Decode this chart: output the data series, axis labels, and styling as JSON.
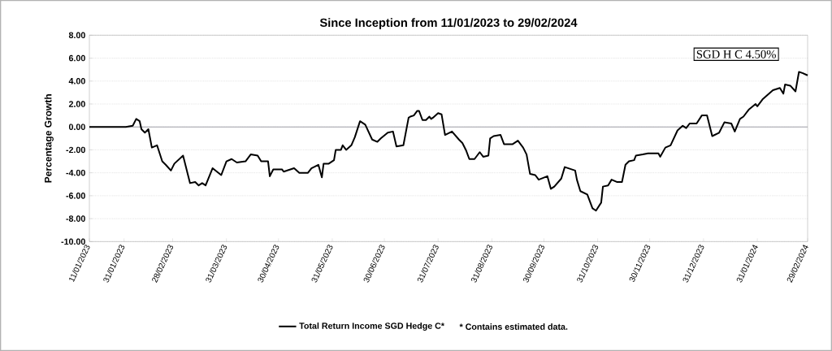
{
  "chart_data": {
    "type": "line",
    "title": "Since Inception from 11/01/2023 to 29/02/2024",
    "ylabel": "Percentage Growth",
    "annotations": [
      "SGD H C 4.50%",
      "*  Contains estimated data."
    ],
    "xlim": [
      "2023-01-11",
      "2024-02-29"
    ],
    "xticks": [
      {
        "value": "2023-01-11",
        "label": "11/01/2023"
      },
      {
        "value": "2023-01-31",
        "label": "31/01/2023"
      },
      {
        "value": "2023-02-28",
        "label": "28/02/2023"
      },
      {
        "value": "2023-03-31",
        "label": "31/03/2023"
      },
      {
        "value": "2023-04-30",
        "label": "30/04/2023"
      },
      {
        "value": "2023-05-31",
        "label": "31/05/2023"
      },
      {
        "value": "2023-06-30",
        "label": "30/06/2023"
      },
      {
        "value": "2023-07-31",
        "label": "31/07/2023"
      },
      {
        "value": "2023-08-31",
        "label": "31/08/2023"
      },
      {
        "value": "2023-09-30",
        "label": "30/09/2023"
      },
      {
        "value": "2023-10-31",
        "label": "31/10/2023"
      },
      {
        "value": "2023-11-30",
        "label": "30/11/2023"
      },
      {
        "value": "2023-12-31",
        "label": "31/12/2023"
      },
      {
        "value": "2024-01-31",
        "label": "31/01/2024"
      },
      {
        "value": "2024-02-29",
        "label": "29/02/2024"
      }
    ],
    "ylim": [
      -10,
      8
    ],
    "yticks": [
      {
        "value": -10,
        "label": "-10.00"
      },
      {
        "value": -8,
        "label": "-8.00"
      },
      {
        "value": -6,
        "label": "-6.00"
      },
      {
        "value": -4,
        "label": "-4.00"
      },
      {
        "value": -2,
        "label": "-2.00"
      },
      {
        "value": 0,
        "label": "0.00"
      },
      {
        "value": 2,
        "label": "2.00"
      },
      {
        "value": 4,
        "label": "4.00"
      },
      {
        "value": 6,
        "label": "6.00"
      },
      {
        "value": 8,
        "label": "8.00"
      }
    ],
    "grid": "y",
    "legend": "bottom",
    "marker": "none",
    "line_style": "solid",
    "ref_lines": [
      {
        "axis": "y",
        "value": 0,
        "color": "#a0a0a8"
      }
    ],
    "series": [
      {
        "name": "Total Return Income SGD Hedge C*",
        "color": "#000000",
        "x": [
          "2023-01-11",
          "2023-02-01",
          "2023-02-05",
          "2023-02-07",
          "2023-02-09",
          "2023-02-10",
          "2023-02-12",
          "2023-02-14",
          "2023-02-16",
          "2023-02-19",
          "2023-02-22",
          "2023-02-24",
          "2023-02-27",
          "2023-03-01",
          "2023-03-06",
          "2023-03-10",
          "2023-03-13",
          "2023-03-15",
          "2023-03-17",
          "2023-03-19",
          "2023-03-23",
          "2023-03-28",
          "2023-03-31",
          "2023-04-03",
          "2023-04-06",
          "2023-04-11",
          "2023-04-14",
          "2023-04-18",
          "2023-04-20",
          "2023-04-24",
          "2023-04-25",
          "2023-04-27",
          "2023-05-02",
          "2023-05-03",
          "2023-05-09",
          "2023-05-12",
          "2023-05-17",
          "2023-05-19",
          "2023-05-23",
          "2023-05-25",
          "2023-05-26",
          "2023-05-29",
          "2023-06-01",
          "2023-06-02",
          "2023-06-05",
          "2023-06-06",
          "2023-06-08",
          "2023-06-11",
          "2023-06-13",
          "2023-06-16",
          "2023-06-19",
          "2023-06-23",
          "2023-06-26",
          "2023-06-28",
          "2023-07-02",
          "2023-07-05",
          "2023-07-07",
          "2023-07-11",
          "2023-07-14",
          "2023-07-15",
          "2023-07-17",
          "2023-07-19",
          "2023-07-20",
          "2023-07-22",
          "2023-07-24",
          "2023-07-26",
          "2023-07-27",
          "2023-07-28",
          "2023-07-31",
          "2023-08-02",
          "2023-08-04",
          "2023-08-08",
          "2023-08-12",
          "2023-08-14",
          "2023-08-16",
          "2023-08-18",
          "2023-08-21",
          "2023-08-24",
          "2023-08-26",
          "2023-08-29",
          "2023-08-30",
          "2023-09-01",
          "2023-09-05",
          "2023-09-07",
          "2023-09-12",
          "2023-09-15",
          "2023-09-18",
          "2023-09-20",
          "2023-09-22",
          "2023-09-25",
          "2023-09-27",
          "2023-10-02",
          "2023-10-04",
          "2023-10-06",
          "2023-10-10",
          "2023-10-12",
          "2023-10-18",
          "2023-10-19",
          "2023-10-21",
          "2023-10-25",
          "2023-10-28",
          "2023-10-30",
          "2023-11-02",
          "2023-11-03",
          "2023-11-06",
          "2023-11-08",
          "2023-11-11",
          "2023-11-14",
          "2023-11-16",
          "2023-11-18",
          "2023-11-21",
          "2023-11-22",
          "2023-11-26",
          "2023-11-29",
          "2023-12-05",
          "2023-12-06",
          "2023-12-09",
          "2023-12-12",
          "2023-12-16",
          "2023-12-19",
          "2023-12-21",
          "2023-12-23",
          "2023-12-27",
          "2023-12-30",
          "2024-01-02",
          "2024-01-05",
          "2024-01-09",
          "2024-01-12",
          "2024-01-16",
          "2024-01-18",
          "2024-01-21",
          "2024-01-23",
          "2024-01-26",
          "2024-01-30",
          "2024-01-31",
          "2024-02-03",
          "2024-02-06",
          "2024-02-09",
          "2024-02-13",
          "2024-02-15",
          "2024-02-16",
          "2024-02-19",
          "2024-02-22",
          "2024-02-24",
          "2024-02-26",
          "2024-02-29"
        ],
        "values": [
          0,
          0,
          0.1,
          0.7,
          0.5,
          -0.2,
          -0.5,
          -0.2,
          -1.8,
          -1.6,
          -3.0,
          -3.3,
          -3.8,
          -3.2,
          -2.5,
          -4.9,
          -4.8,
          -5.1,
          -4.9,
          -5.1,
          -3.6,
          -4.2,
          -3.0,
          -2.8,
          -3.1,
          -3.0,
          -2.4,
          -2.5,
          -3.0,
          -3.0,
          -4.3,
          -3.7,
          -3.7,
          -3.9,
          -3.6,
          -4.0,
          -4.0,
          -3.6,
          -3.3,
          -4.4,
          -3.2,
          -3.2,
          -2.9,
          -2.0,
          -2.0,
          -1.6,
          -2.0,
          -1.6,
          -0.9,
          0.5,
          0.2,
          -1.1,
          -1.3,
          -1.0,
          -0.5,
          -0.4,
          -1.7,
          -1.6,
          0.8,
          0.9,
          1.0,
          1.4,
          1.4,
          0.6,
          0.6,
          0.9,
          0.7,
          0.8,
          1.2,
          1.1,
          -0.7,
          -0.4,
          -1.1,
          -1.4,
          -2.0,
          -2.8,
          -2.8,
          -2.2,
          -2.6,
          -2.5,
          -1.0,
          -0.8,
          -0.7,
          -1.5,
          -1.5,
          -1.2,
          -1.8,
          -2.4,
          -4.1,
          -4.2,
          -4.6,
          -4.3,
          -5.4,
          -5.2,
          -4.5,
          -3.5,
          -3.8,
          -4.6,
          -5.6,
          -5.9,
          -7.1,
          -7.3,
          -6.6,
          -5.2,
          -5.1,
          -4.6,
          -4.8,
          -4.8,
          -3.3,
          -3.0,
          -2.9,
          -2.5,
          -2.4,
          -2.3,
          -2.3,
          -2.6,
          -1.8,
          -1.6,
          -0.3,
          0.1,
          -0.1,
          0.3,
          0.3,
          1.0,
          1.0,
          -0.8,
          -0.5,
          0.4,
          0.3,
          -0.4,
          0.7,
          0.9,
          1.5,
          2.0,
          1.8,
          2.4,
          2.8,
          3.2,
          3.4,
          2.9,
          3.7,
          3.6,
          3.1,
          4.8,
          4.7,
          4.5
        ]
      }
    ]
  }
}
